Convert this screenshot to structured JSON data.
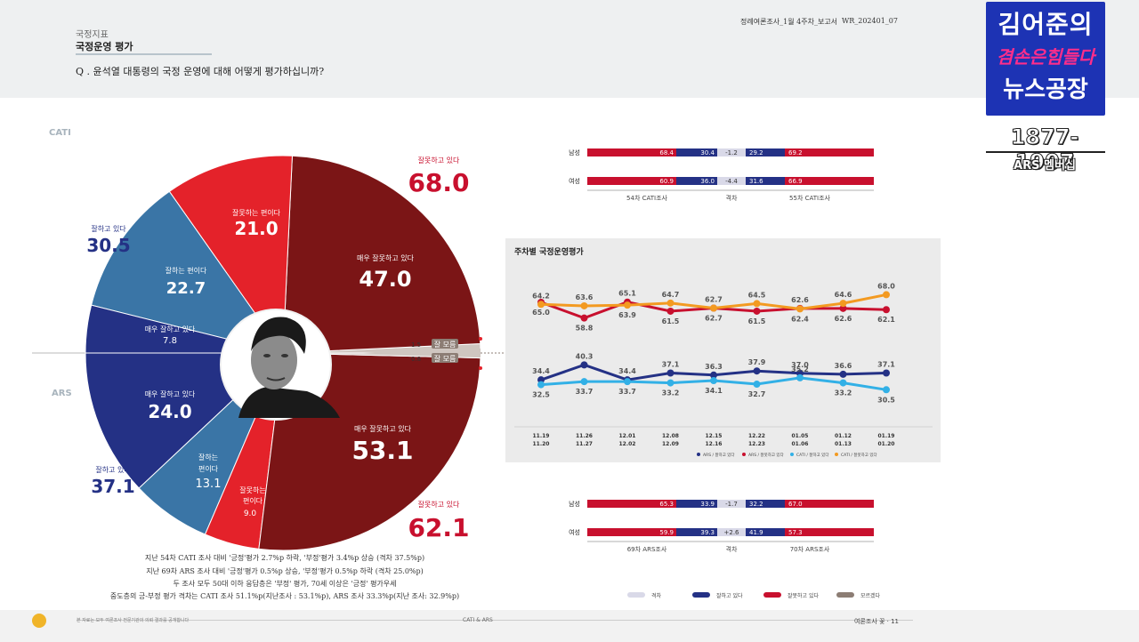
{
  "header": {
    "section": "국정지표",
    "title": "국정운영 평가",
    "question": "Q . 윤석열 대통령의 국정 운영에 대해 어떻게 평가하십니까?",
    "report_name": "정례여론조사_1월 4주차_보고서",
    "report_code": "WR_202401_07"
  },
  "branding": {
    "logo_line1": "김어준의",
    "logo_line2": "겸손은힘들다",
    "logo_line3": "뉴스공장",
    "episode": "1877-1907",
    "subtitle": "ARS 멤버십",
    "brand_color": "#1d33b4"
  },
  "side_labels": {
    "top": "CATI",
    "bottom": "ARS"
  },
  "colors": {
    "dark_red": "#7b1516",
    "red": "#e4222a",
    "navy": "#243185",
    "steel_blue": "#3a75a6",
    "sky": "#32b0e6",
    "orange": "#f39a21",
    "gap_gray": "#d9d9e8",
    "unknown_taupe": "#8c7d74"
  },
  "chart_data": [
    {
      "type": "pie",
      "name": "CATI 국정운영 평가",
      "values": [
        {
          "label": "매우 잘못하고 있다",
          "value": 47.0
        },
        {
          "label": "잘못하는 편이다",
          "value": 21.0
        },
        {
          "label": "잘하는 편이다",
          "value": 22.7
        },
        {
          "label": "매우 잘하고 있다",
          "value": 7.8
        },
        {
          "label": "잘 모름",
          "value": 1.5
        }
      ],
      "totals": [
        {
          "label": "잘못하고 있다",
          "value": 68.0
        },
        {
          "label": "잘하고 있다",
          "value": 30.5
        }
      ]
    },
    {
      "type": "pie",
      "name": "ARS 국정운영 평가",
      "values": [
        {
          "label": "매우 잘하고 있다",
          "value": 24.0
        },
        {
          "label": "잘하는 편이다",
          "value": 13.1
        },
        {
          "label": "잘못하는 편이다",
          "value": 9.0
        },
        {
          "label": "매우 잘못하고 있다",
          "value": 53.1
        },
        {
          "label": "잘 모름",
          "value": 0.8
        }
      ],
      "totals": [
        {
          "label": "잘하고 있다",
          "value": 37.1
        },
        {
          "label": "잘못하고 있다",
          "value": 62.1
        }
      ]
    },
    {
      "type": "line",
      "title": "주차별 국정운영평가",
      "categories": [
        "11.19\n11.20",
        "11.26\n11.27",
        "12.01\n12.02",
        "12.08\n12.09",
        "12.15\n12.16",
        "12.22\n12.23",
        "01.05\n01.06",
        "01.12\n01.13",
        "01.19\n01.20"
      ],
      "series": [
        {
          "name": "ARS / 잘하고 있다",
          "values": [
            34.4,
            40.3,
            34.4,
            37.1,
            36.3,
            37.9,
            37.0,
            36.6,
            37.1
          ]
        },
        {
          "name": "ARS / 잘못하고 있다",
          "values": [
            65.0,
            58.8,
            65.1,
            61.5,
            62.7,
            61.5,
            62.6,
            62.6,
            62.1
          ]
        },
        {
          "name": "CATI / 잘하고 있다",
          "values": [
            32.5,
            33.7,
            33.7,
            33.2,
            34.1,
            32.7,
            35.2,
            33.2,
            30.5
          ]
        },
        {
          "name": "CATI / 잘못하고 있다",
          "values": [
            64.2,
            63.6,
            63.9,
            64.7,
            62.7,
            64.5,
            62.4,
            64.6,
            68.0
          ]
        }
      ]
    },
    {
      "type": "bar",
      "name": "CATI 성별 비교",
      "categories": [
        "남성",
        "여성"
      ],
      "series": [
        {
          "name": "54차 CATI조사 잘못하고 있다",
          "values": [
            68.4,
            60.9
          ]
        },
        {
          "name": "54차 CATI조사 잘하고 있다",
          "values": [
            30.4,
            36.0
          ]
        },
        {
          "name": "격차",
          "values": [
            -1.2,
            -4.4
          ]
        },
        {
          "name": "55차 CATI조사 잘하고 있다",
          "values": [
            29.2,
            31.6
          ]
        },
        {
          "name": "55차 CATI조사 잘못하고 있다",
          "values": [
            69.2,
            66.9
          ]
        }
      ]
    },
    {
      "type": "bar",
      "name": "ARS 성별 비교",
      "categories": [
        "남성",
        "여성"
      ],
      "series": [
        {
          "name": "69차 ARS조사 잘못하고 있다",
          "values": [
            65.3,
            59.9
          ]
        },
        {
          "name": "69차 ARS조사 잘하고 있다",
          "values": [
            33.9,
            39.3
          ]
        },
        {
          "name": "격차",
          "values": [
            -1.7,
            2.6
          ]
        },
        {
          "name": "70차 ARS조사 잘하고 있다",
          "values": [
            32.2,
            41.9
          ]
        },
        {
          "name": "70차 ARS조사 잘못하고 있다",
          "values": [
            67.0,
            57.3
          ]
        }
      ]
    }
  ],
  "pie_labels": {
    "cati_wrong_total": "잘못하고 있다",
    "cati_wrong_total_val": "68.0",
    "cati_very_wrong": "매우 잘못하고 있다",
    "cati_very_wrong_val": "47.0",
    "cati_wrong": "잘못하는 편이다",
    "cati_wrong_val": "21.0",
    "cati_good_total": "잘하고 있다",
    "cati_good_total_val": "30.5",
    "cati_good": "잘하는 편이다",
    "cati_good_val": "22.7",
    "cati_very_good": "매우 잘하고 있다",
    "cati_very_good_val": "7.8",
    "unknown": "잘 모름",
    "cati_unknown_val": "1.5",
    "ars_unknown_val": "0.8",
    "ars_very_good": "매우 잘하고 있다",
    "ars_very_good_val": "24.0",
    "ars_good_l1": "잘하는",
    "ars_good_l2": "편이다",
    "ars_good_val": "13.1",
    "ars_good_total": "잘하고 있다",
    "ars_good_total_val": "37.1",
    "ars_wrong_l1": "잘못하는",
    "ars_wrong_l2": "편이다",
    "ars_wrong_val": "9.0",
    "ars_very_wrong": "매우 잘못하고 있다",
    "ars_very_wrong_val": "53.1",
    "ars_wrong_total": "잘못하고 있다",
    "ars_wrong_total_val": "62.1"
  },
  "gender_tables": {
    "cati": {
      "rows": [
        {
          "label": "남성",
          "left_wrong": "68.4",
          "left_good": "30.4",
          "gap": "-1.2",
          "right_good": "29.2",
          "right_wrong": "69.2"
        },
        {
          "label": "여성",
          "left_wrong": "60.9",
          "left_good": "36.0",
          "gap": "-4.4",
          "right_good": "31.6",
          "right_wrong": "66.9"
        }
      ],
      "left_caption": "54차 CATI조사",
      "gap_caption": "격차",
      "right_caption": "55차 CATI조사"
    },
    "ars": {
      "rows": [
        {
          "label": "남성",
          "left_wrong": "65.3",
          "left_good": "33.9",
          "gap": "-1.7",
          "right_good": "32.2",
          "right_wrong": "67.0"
        },
        {
          "label": "여성",
          "left_wrong": "59.9",
          "left_good": "39.3",
          "gap": "+2.6",
          "right_good": "41.9",
          "right_wrong": "57.3"
        }
      ],
      "left_caption": "69차 ARS조사",
      "gap_caption": "격차",
      "right_caption": "70차 ARS조사"
    }
  },
  "line_legend": [
    "ARS / 잘하고 있다",
    "ARS / 잘못하고 있다",
    "CATI / 잘하고 있다",
    "CATI / 잘못하고 있다"
  ],
  "bottom_legend": [
    "격차",
    "잘하고 있다",
    "잘못하고 있다",
    "모르겠다"
  ],
  "footnotes": [
    "지난 54차 CATI 조사 대비 '긍정'평가 2.7%p 하락, '부정'평가 3.4%p 상승 (격차 37.5%p)",
    "지난 69차 ARS 조사 대비 '긍정'평가 0.5%p 상승, '부정'평가 0.5%p 하락 (격차 25.0%p)",
    "두 조사 모두 50대 이하 응답층은 '부정' 평가, 70세 이상은 '긍정' 평가우세",
    "중도층의 긍-부정 평가 격차는 CATI 조사 51.1%p(지난조사 : 53.1%p), ARS 조사 33.3%p(지난 조사: 32.9%p)"
  ],
  "footer": {
    "left": "본 자료는 모두 여론조사 전문기관의 의뢰 결과를 공개합니다",
    "center": "CATI & ARS",
    "right": "여론조사 꽃 · 11"
  }
}
